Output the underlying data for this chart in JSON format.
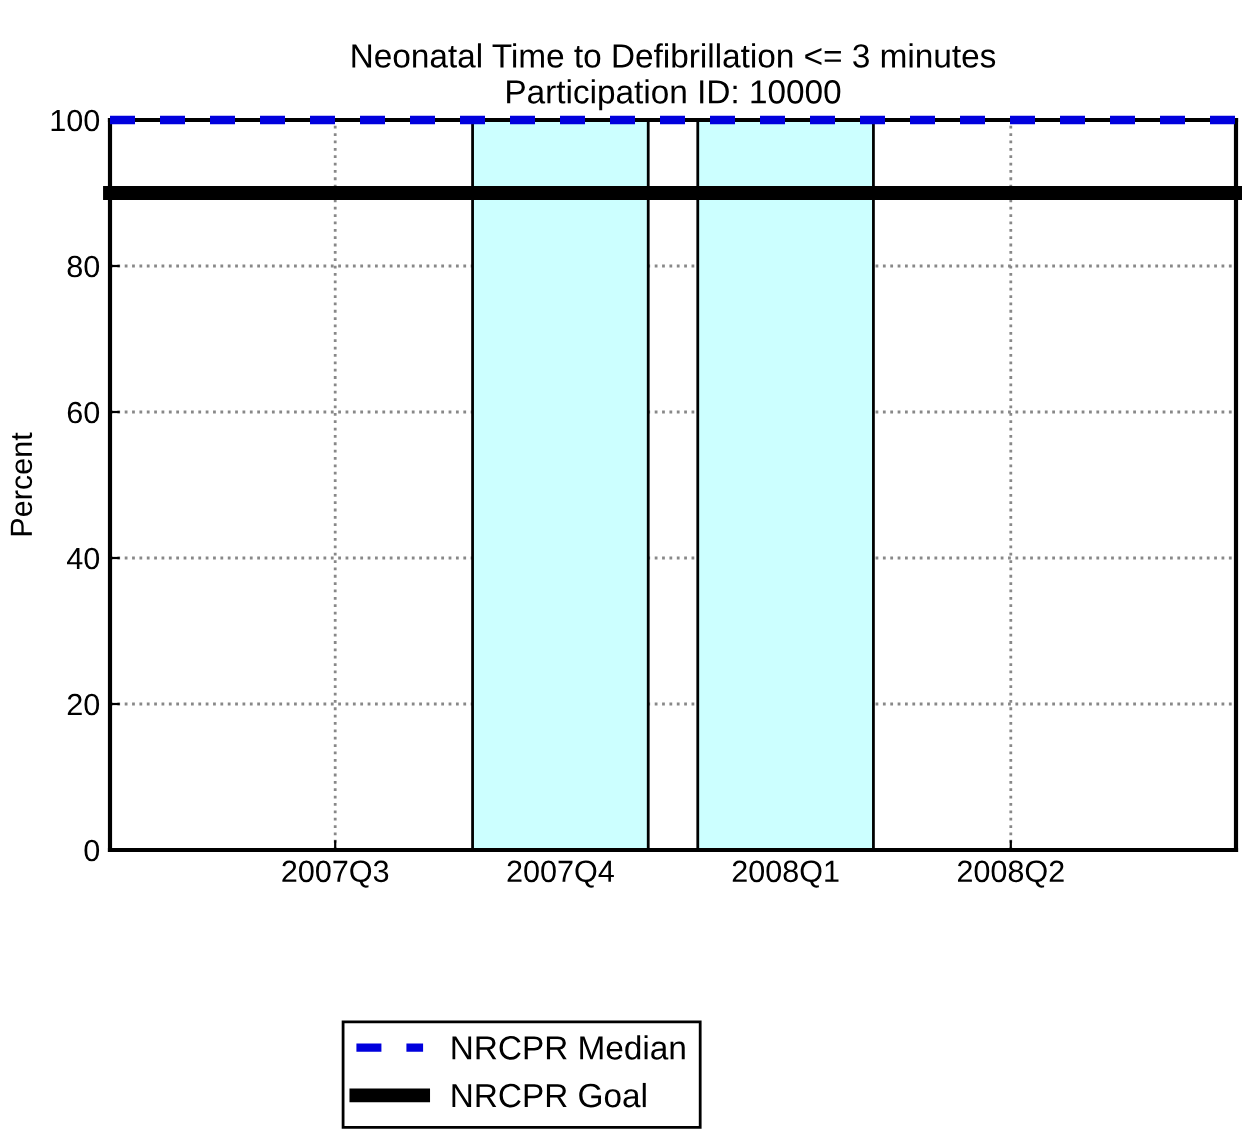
{
  "chart_data": {
    "type": "bar",
    "title": "Neonatal Time to Defibrillation <= 3 minutes\nParticipation ID: 10000",
    "ylabel": "Percent",
    "categories": [
      "2007Q3",
      "2007Q4",
      "2008Q1",
      "2008Q2"
    ],
    "values": [
      null,
      100,
      100,
      null
    ],
    "color": "#ccffff",
    "ylim": [
      0,
      100
    ],
    "yticks": [
      0,
      20,
      40,
      60,
      80,
      100
    ],
    "grid": true,
    "ref_lines": [
      {
        "axis": "y",
        "value": 100,
        "label": "NRCPR Median",
        "color": "#0000dd",
        "line_style": "dashed"
      },
      {
        "axis": "y",
        "value": 90,
        "label": "NRCPR Goal",
        "color": "#000000",
        "line_style": "solid"
      }
    ],
    "legend": "bottom"
  }
}
